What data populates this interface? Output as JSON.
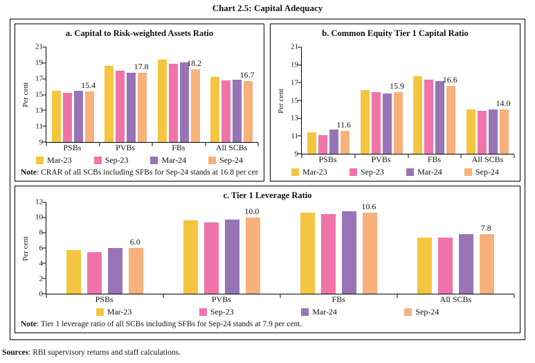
{
  "title": "Chart 2.5: Capital Adequacy",
  "sources": {
    "label": "Sources",
    "text": ": RBI supervisory returns and staff calculations."
  },
  "chart_data": [
    {
      "id": "crar",
      "type": "bar",
      "title": "a. Capital to Risk-weighted Assets Ratio",
      "ylabel": "Per cent",
      "ylim": [
        9,
        21
      ],
      "yticks": [
        9,
        11,
        13,
        15,
        17,
        19,
        21
      ],
      "grid": false,
      "legend_position": "bottom",
      "categories": [
        "PSBs",
        "PVBs",
        "FBs",
        "All SCBs"
      ],
      "series": [
        {
          "name": "Mar-23",
          "color": "#F4C63F",
          "values": [
            15.5,
            18.6,
            19.4,
            17.2
          ]
        },
        {
          "name": "Sep-23",
          "color": "#F074A9",
          "values": [
            15.2,
            18.0,
            18.9,
            16.8
          ]
        },
        {
          "name": "Mar-24",
          "color": "#9874B6",
          "values": [
            15.5,
            17.8,
            19.1,
            16.9
          ]
        },
        {
          "name": "Sep-24",
          "color": "#F9B17C",
          "values": [
            15.4,
            17.8,
            18.2,
            16.7
          ]
        }
      ],
      "data_label_series": "Sep-24",
      "note_label": "Note",
      "note_text": ": CRAR of all SCBs including SFBs for Sep-24 stands at 16.8 per cent."
    },
    {
      "id": "cet1",
      "type": "bar",
      "title": "b. Common Equity Tier 1 Capital Ratio",
      "ylabel": "Per cent",
      "ylim": [
        9,
        21
      ],
      "yticks": [
        9,
        11,
        13,
        15,
        17,
        19,
        21
      ],
      "grid": false,
      "legend_position": "bottom",
      "categories": [
        "PSBs",
        "PVBs",
        "FBs",
        "All SCBs"
      ],
      "series": [
        {
          "name": "Mar-23",
          "color": "#F4C63F",
          "values": [
            11.4,
            16.2,
            17.7,
            14.0
          ]
        },
        {
          "name": "Sep-23",
          "color": "#F074A9",
          "values": [
            11.1,
            15.9,
            17.3,
            13.8
          ]
        },
        {
          "name": "Mar-24",
          "color": "#9874B6",
          "values": [
            11.7,
            15.8,
            17.2,
            14.0
          ]
        },
        {
          "name": "Sep-24",
          "color": "#F9B17C",
          "values": [
            11.6,
            15.9,
            16.6,
            14.0
          ]
        }
      ],
      "data_label_series": "Sep-24"
    },
    {
      "id": "leverage",
      "type": "bar",
      "title": "c. Tier 1 Leverage Ratio",
      "ylabel": "Per cent",
      "ylim": [
        0,
        12
      ],
      "yticks": [
        0,
        2,
        4,
        6,
        8,
        10,
        12
      ],
      "grid": false,
      "legend_position": "bottom",
      "categories": [
        "PSBs",
        "PVBs",
        "FBs",
        "All SCBs"
      ],
      "series": [
        {
          "name": "Mar-23",
          "color": "#F4C63F",
          "values": [
            5.7,
            9.6,
            10.6,
            7.4
          ]
        },
        {
          "name": "Sep-23",
          "color": "#F074A9",
          "values": [
            5.5,
            9.4,
            10.5,
            7.4
          ]
        },
        {
          "name": "Mar-24",
          "color": "#9874B6",
          "values": [
            6.0,
            9.7,
            10.8,
            7.8
          ]
        },
        {
          "name": "Sep-24",
          "color": "#F9B17C",
          "values": [
            6.0,
            10.0,
            10.6,
            7.8
          ]
        }
      ],
      "data_label_series": "Sep-24",
      "note_label": "Note",
      "note_text": ": Tier 1 leverage ratio of all SCBs including SFBs for Sep-24 stands at 7.9 per cent."
    }
  ]
}
